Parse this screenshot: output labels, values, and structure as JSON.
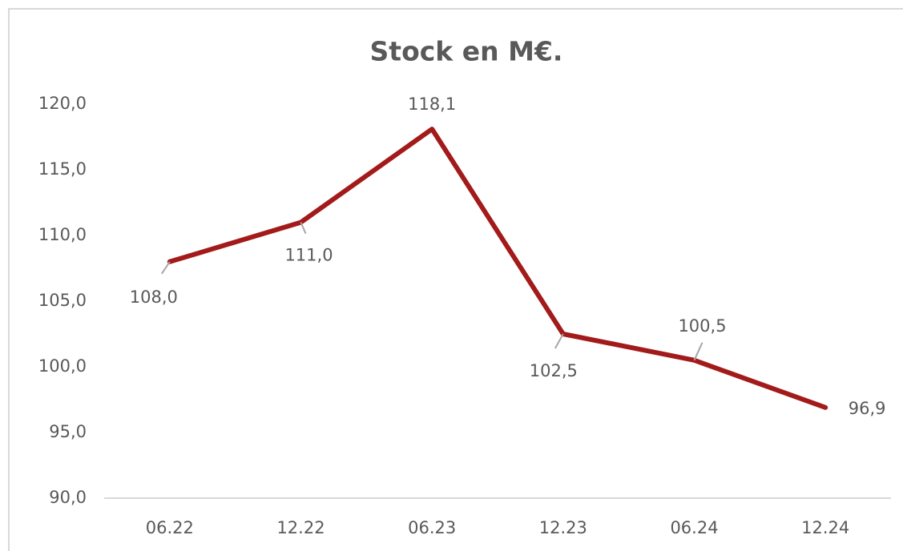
{
  "chart_data": {
    "type": "line",
    "title": "Stock en M€.",
    "categories": [
      "06.22",
      "12.22",
      "06.23",
      "12.23",
      "06.24",
      "12.24"
    ],
    "series": [
      {
        "name": "Stock",
        "color": "#a31a1a",
        "values": [
          108.0,
          111.0,
          118.1,
          102.5,
          100.5,
          96.9
        ],
        "value_labels": [
          "108,0",
          "111,0",
          "118,1",
          "102,5",
          "100,5",
          "96,9"
        ]
      }
    ],
    "ylim": [
      90,
      120
    ],
    "yticks": [
      {
        "value": 90,
        "label": "90,0"
      },
      {
        "value": 95,
        "label": "95,0"
      },
      {
        "value": 100,
        "label": "100,0"
      },
      {
        "value": 105,
        "label": "105,0"
      },
      {
        "value": 110,
        "label": "110,0"
      },
      {
        "value": 115,
        "label": "115,0"
      },
      {
        "value": 120,
        "label": "120,0"
      }
    ]
  }
}
